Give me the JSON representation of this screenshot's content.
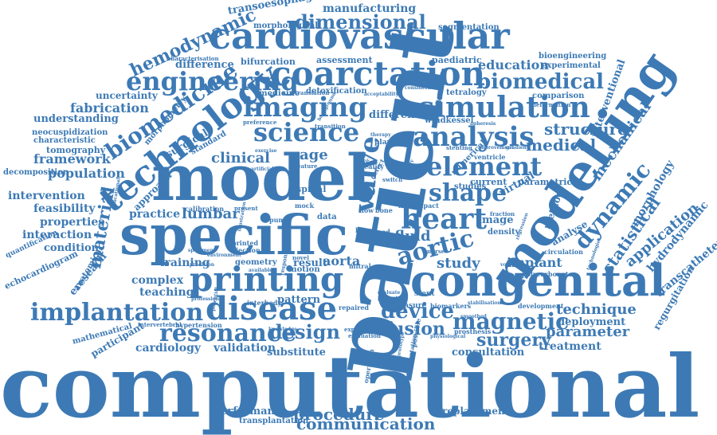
{
  "colors": {
    "word": "#3d7ab5",
    "background": "#ffffff"
  },
  "words": [
    {
      "text": "computational"
    },
    {
      "text": "patient"
    },
    {
      "text": "model"
    },
    {
      "text": "specific"
    },
    {
      "text": "modelling"
    },
    {
      "text": "congenital"
    },
    {
      "text": "cardiovascular"
    },
    {
      "text": "coarctation"
    },
    {
      "text": "printing"
    },
    {
      "text": "disease"
    },
    {
      "text": "technology"
    },
    {
      "text": "simulation"
    },
    {
      "text": "engineering"
    },
    {
      "text": "imaging"
    },
    {
      "text": "analysis"
    },
    {
      "text": "science"
    },
    {
      "text": "biomedicine"
    },
    {
      "text": "biomedical"
    },
    {
      "text": "element"
    },
    {
      "text": "heart"
    },
    {
      "text": "shape"
    },
    {
      "text": "aortic"
    },
    {
      "text": "dynamic"
    },
    {
      "text": "implantation"
    },
    {
      "text": "resonance"
    },
    {
      "text": "magnetic"
    },
    {
      "text": "dimensional"
    },
    {
      "text": "hemodynamic"
    },
    {
      "text": "valve"
    },
    {
      "text": "device"
    },
    {
      "text": "fusion"
    },
    {
      "text": "surgery"
    },
    {
      "text": "design"
    },
    {
      "text": "material"
    },
    {
      "text": "statistical"
    },
    {
      "text": "application"
    },
    {
      "text": "structure"
    },
    {
      "text": "medical"
    },
    {
      "text": "education"
    },
    {
      "text": "clinical"
    },
    {
      "text": "fluid"
    },
    {
      "text": "study"
    },
    {
      "text": "technique"
    },
    {
      "text": "parameter"
    },
    {
      "text": "procedure"
    },
    {
      "text": "communication"
    },
    {
      "text": "fabrication"
    },
    {
      "text": "framework"
    },
    {
      "text": "population"
    },
    {
      "text": "intervention"
    },
    {
      "text": "feasibility"
    },
    {
      "text": "properties"
    },
    {
      "text": "interaction"
    },
    {
      "text": "condition"
    },
    {
      "text": "understanding"
    },
    {
      "text": "uncertainty"
    },
    {
      "text": "difference"
    },
    {
      "text": "characteristic"
    },
    {
      "text": "tomography"
    },
    {
      "text": "lumbar"
    },
    {
      "text": "practice"
    },
    {
      "text": "training"
    },
    {
      "text": "complex"
    },
    {
      "text": "teaching"
    },
    {
      "text": "cardiology"
    },
    {
      "text": "validation"
    },
    {
      "text": "substitute"
    },
    {
      "text": "performance"
    },
    {
      "text": "transplantation"
    },
    {
      "text": "replacement"
    },
    {
      "text": "consultation"
    },
    {
      "text": "treatment"
    },
    {
      "text": "deployment"
    },
    {
      "text": "implant"
    },
    {
      "text": "analyse"
    },
    {
      "text": "hydrodynamic"
    },
    {
      "text": "transcatheter"
    },
    {
      "text": "regurgitation"
    },
    {
      "text": "mechanical"
    },
    {
      "text": "interventional"
    },
    {
      "text": "morphology"
    },
    {
      "text": "manufacturing"
    },
    {
      "text": "transoesophageal"
    },
    {
      "text": "morphological"
    },
    {
      "text": "segmentation"
    },
    {
      "text": "bioengineering"
    },
    {
      "text": "experimental"
    },
    {
      "text": "paediatric"
    },
    {
      "text": "assessment"
    },
    {
      "text": "bifurcation"
    },
    {
      "text": "characterisation"
    },
    {
      "text": "detoxification"
    },
    {
      "text": "comparison"
    },
    {
      "text": "tetralogy"
    },
    {
      "text": "different"
    },
    {
      "text": "windkessel"
    },
    {
      "text": "current"
    },
    {
      "text": "parametric"
    },
    {
      "text": "studies"
    },
    {
      "text": "virtual"
    },
    {
      "text": "image"
    },
    {
      "text": "numerical"
    },
    {
      "text": "method"
    },
    {
      "text": "cage"
    },
    {
      "text": "surgical"
    },
    {
      "text": "approach"
    },
    {
      "text": "aorta"
    },
    {
      "text": "result"
    },
    {
      "text": "pattern"
    },
    {
      "text": "mathematical"
    },
    {
      "text": "participant"
    },
    {
      "text": "ereseach"
    },
    {
      "text": "echocardiogram"
    },
    {
      "text": "anatomical"
    },
    {
      "text": "quantification"
    },
    {
      "text": "decomposition"
    },
    {
      "text": "neocuspidization"
    },
    {
      "text": "morphometry"
    },
    {
      "text": "standard"
    },
    {
      "text": "spinal"
    },
    {
      "text": "geometry"
    },
    {
      "text": "motion"
    },
    {
      "text": "novel"
    },
    {
      "text": "stent"
    },
    {
      "text": "measure"
    },
    {
      "text": "biomarkers"
    },
    {
      "text": "development"
    },
    {
      "text": "circulation"
    },
    {
      "text": "polycarbonate"
    },
    {
      "text": "density"
    },
    {
      "text": "prosthesis"
    },
    {
      "text": "experience"
    },
    {
      "text": "evaluation"
    },
    {
      "text": "repaired"
    },
    {
      "text": "interbody"
    },
    {
      "text": "hypertension"
    },
    {
      "text": "intervertebral"
    },
    {
      "text": "printed"
    },
    {
      "text": "ejection"
    },
    {
      "text": "calibration"
    },
    {
      "text": "present"
    },
    {
      "text": "pump"
    },
    {
      "text": "mock"
    },
    {
      "text": "data"
    },
    {
      "text": "flow"
    },
    {
      "text": "bone"
    },
    {
      "text": "case"
    },
    {
      "text": "blood"
    },
    {
      "text": "life"
    },
    {
      "text": "mitral"
    },
    {
      "text": "operation"
    },
    {
      "text": "implementation"
    },
    {
      "text": "possible"
    },
    {
      "text": "ventricle"
    },
    {
      "text": "stenting"
    },
    {
      "text": "planning"
    },
    {
      "text": "preference"
    },
    {
      "text": "transition"
    },
    {
      "text": "translation"
    },
    {
      "text": "medicine"
    },
    {
      "text": "feature"
    },
    {
      "text": "reality"
    },
    {
      "text": "defect"
    },
    {
      "text": "switch"
    },
    {
      "text": "micro"
    },
    {
      "text": "impact"
    },
    {
      "text": "response"
    },
    {
      "text": "nurse"
    },
    {
      "text": "acceptability"
    },
    {
      "text": "consideration"
    },
    {
      "text": "improvement"
    },
    {
      "text": "deformation"
    },
    {
      "text": "technologies"
    },
    {
      "text": "regression"
    },
    {
      "text": "fraction"
    },
    {
      "text": "apheresis"
    },
    {
      "text": "therapy"
    },
    {
      "text": "exercise"
    },
    {
      "text": "artificial"
    },
    {
      "text": "illustration"
    },
    {
      "text": "professional"
    },
    {
      "text": "potential"
    },
    {
      "text": "educational"
    },
    {
      "text": "specimen"
    },
    {
      "text": "precision"
    },
    {
      "text": "smoothed"
    },
    {
      "text": "pledget"
    },
    {
      "text": "evaluate"
    },
    {
      "text": "survey"
    },
    {
      "text": "genetic"
    },
    {
      "text": "background"
    },
    {
      "text": "knowledge"
    },
    {
      "text": "physiological"
    },
    {
      "text": "gradient"
    },
    {
      "text": "environment"
    },
    {
      "text": "stabilisation"
    },
    {
      "text": "available"
    },
    {
      "text": "prototype"
    },
    {
      "text": "volume"
    }
  ]
}
